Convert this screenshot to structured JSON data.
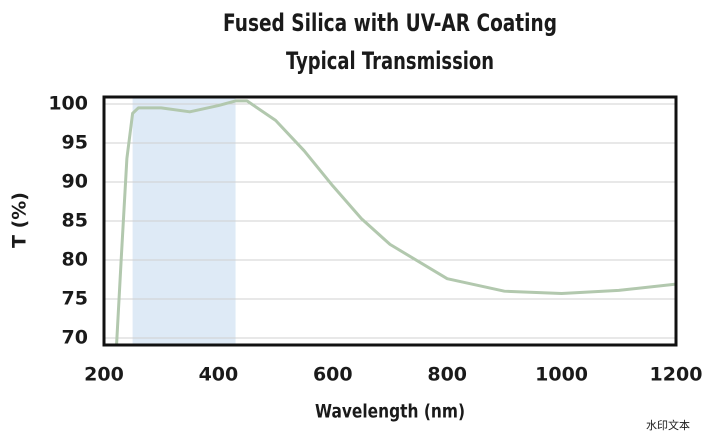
{
  "chart_data": {
    "type": "line",
    "title": "Fused Silica with UV-AR Coating",
    "subtitle": "Typical Transmission",
    "x_label": "Wavelength (nm)",
    "y_label": "T (%)",
    "watermark": "水印文本",
    "x": [
      222,
      230,
      240,
      250,
      260,
      300,
      350,
      400,
      430,
      450,
      500,
      550,
      600,
      650,
      700,
      800,
      900,
      1000,
      1100,
      1200
    ],
    "series": [
      {
        "color": "#b2c8ae",
        "values": [
          69.2,
          80,
          93,
          98.8,
          99.5,
          99.5,
          99.0,
          99.8,
          100.4,
          100.4,
          97.9,
          94.0,
          89.5,
          85.3,
          82.0,
          77.6,
          76.0,
          75.7,
          76.1,
          76.9
        ]
      }
    ],
    "shaded_range": [
      250,
      430
    ],
    "shade_color": "#deeaf6",
    "xlim": [
      200,
      1200
    ],
    "ylim": [
      69.1,
      100.9
    ],
    "xticks": [
      200,
      400,
      600,
      800,
      1000,
      1200
    ],
    "yticks": [
      70,
      75,
      80,
      85,
      90,
      95,
      100
    ],
    "grid": true
  }
}
